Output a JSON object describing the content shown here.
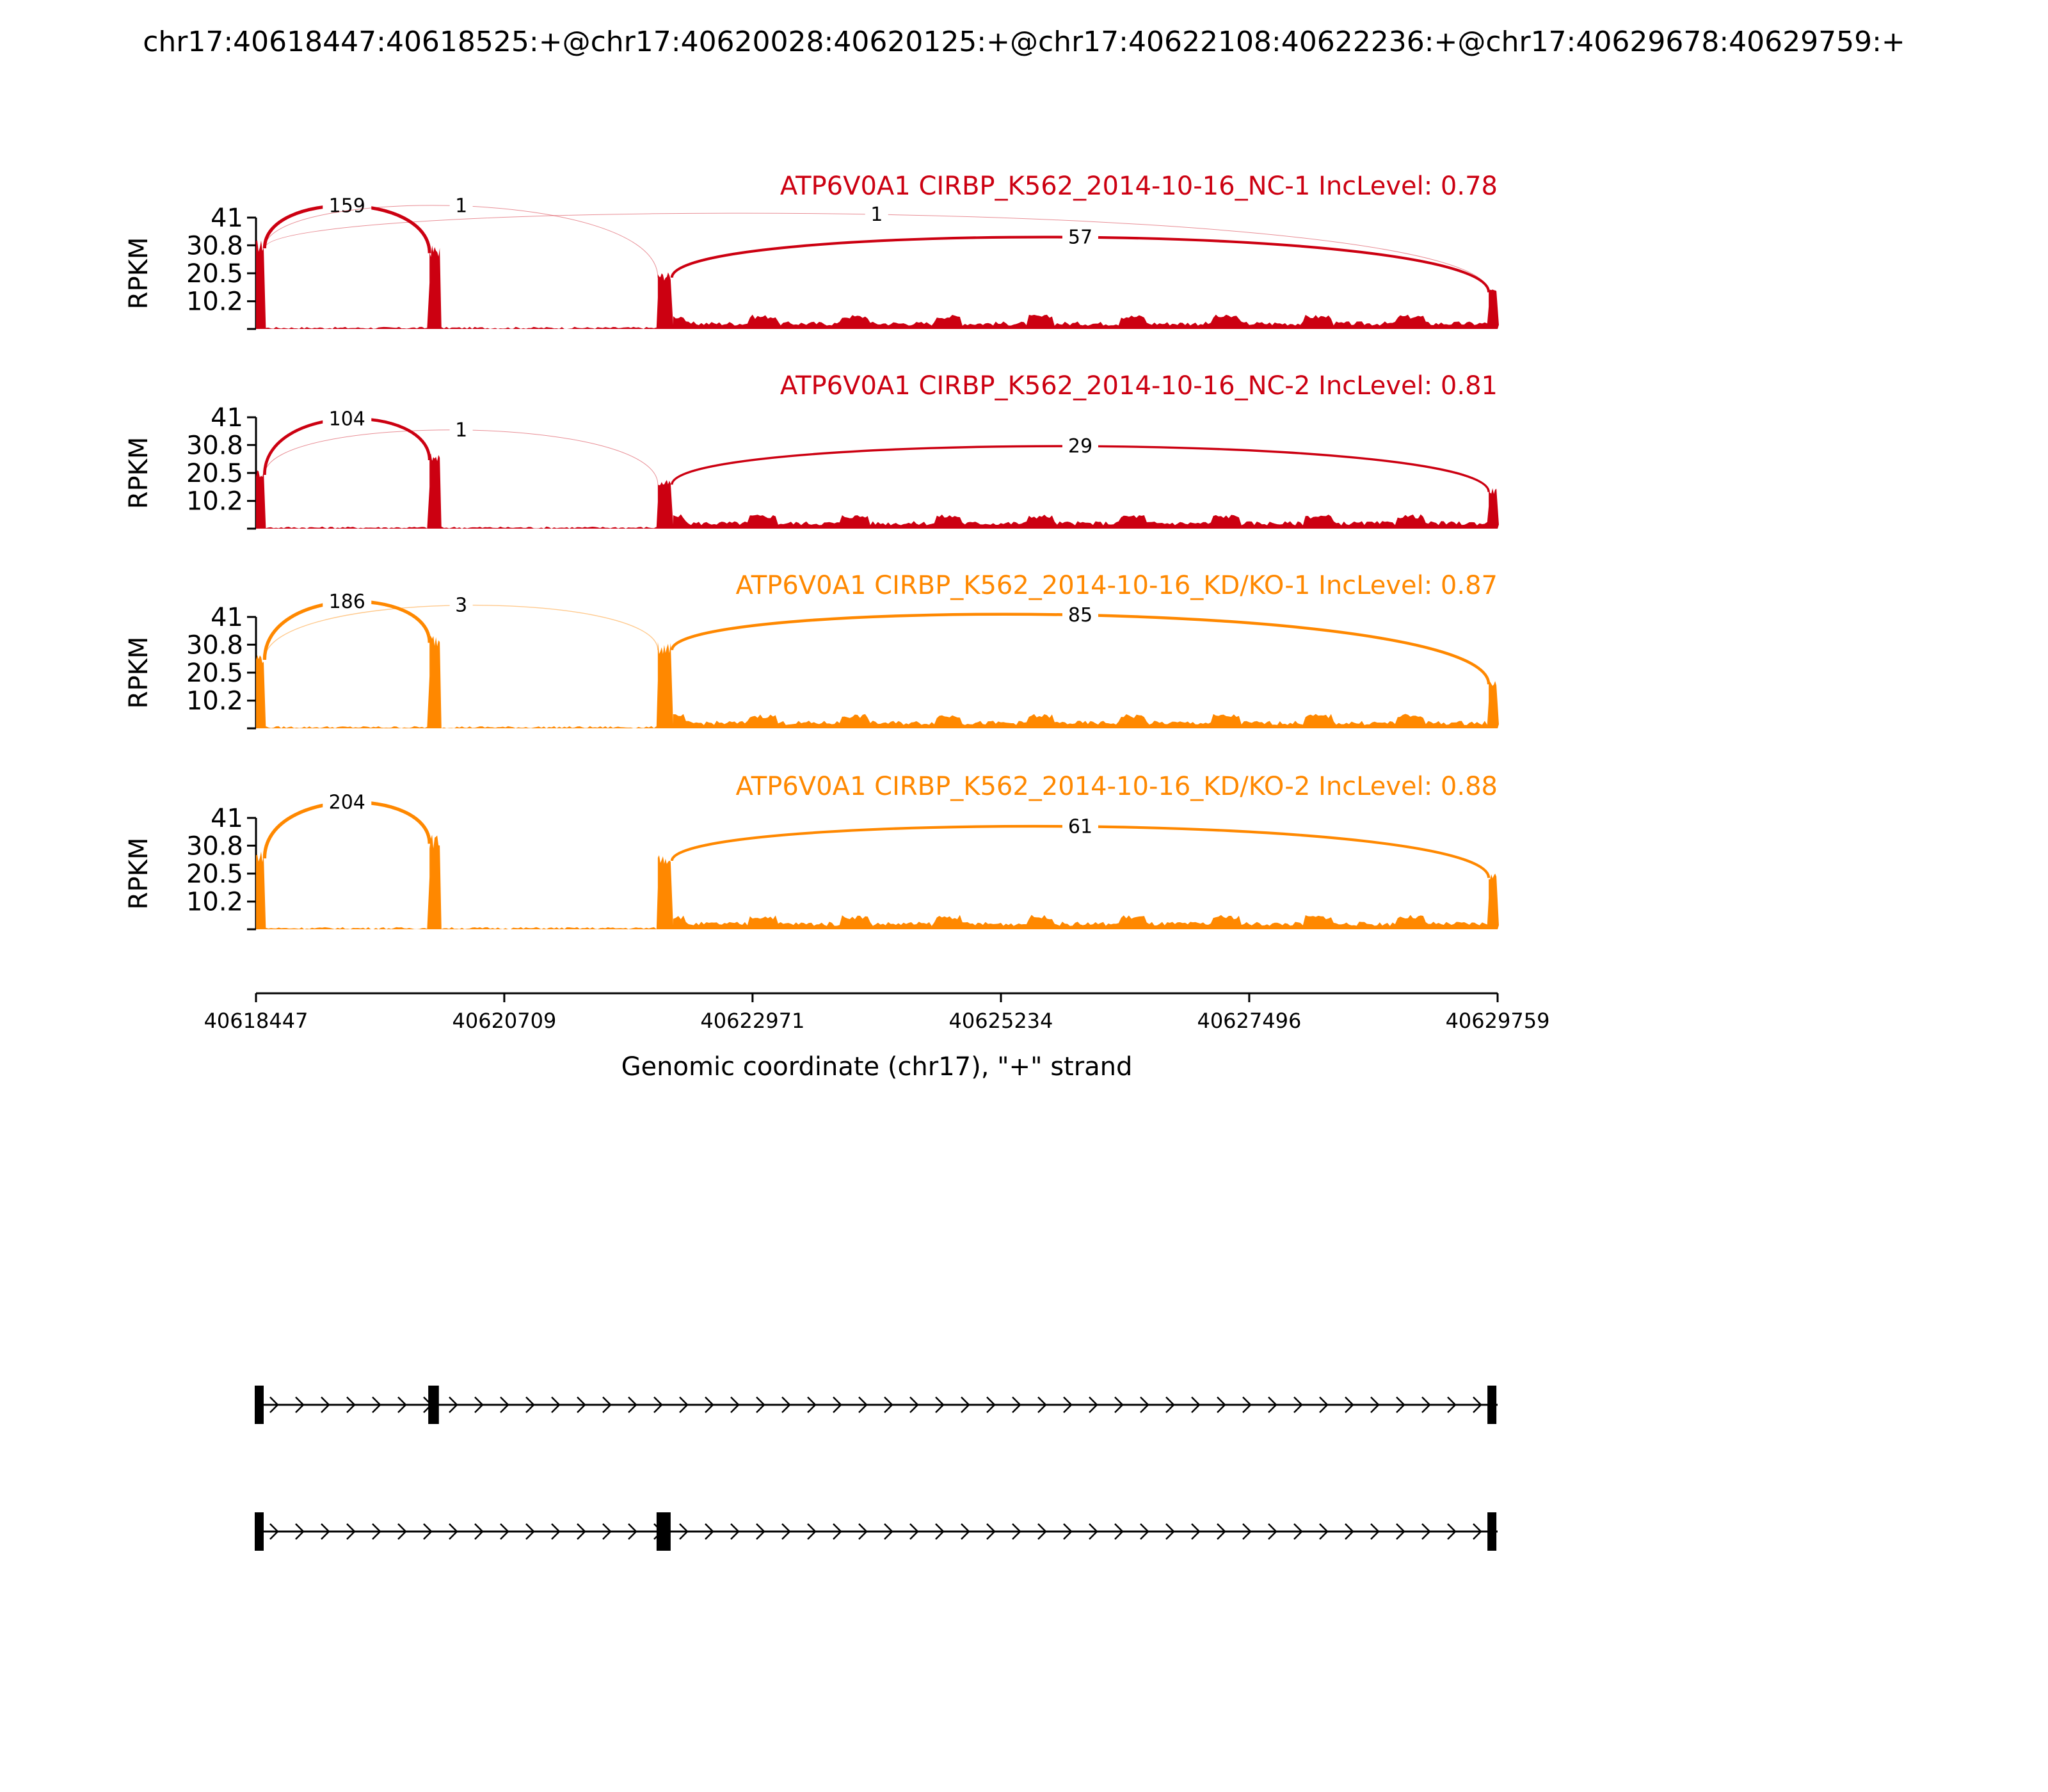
{
  "title": "chr17:40618447:40618525:+@chr17:40620028:40620125:+@chr17:40622108:40622236:+@chr17:40629678:40629759:+",
  "colors": {
    "nc": "#CC0011",
    "kd": "#FF8800",
    "axis": "#000000"
  },
  "chart_data": {
    "type": "area",
    "plot_kind": "sashimi",
    "xlabel": "Genomic coordinate (chr17), \"+\" strand",
    "xlim": [
      40618447,
      40629759
    ],
    "xticks": [
      "40618447",
      "40620709",
      "40622971",
      "40625234",
      "40627496",
      "40629759"
    ],
    "ylabel": "RPKM",
    "ylim": [
      0,
      41
    ],
    "yticks": [
      "41",
      "30.8",
      "20.5",
      "10.2"
    ],
    "exons": [
      {
        "start": 40618447,
        "end": 40618525
      },
      {
        "start": 40620028,
        "end": 40620125
      },
      {
        "start": 40622108,
        "end": 40622236
      },
      {
        "start": 40629678,
        "end": 40629759
      }
    ],
    "panels": [
      {
        "label": "ATP6V0A1 CIRBP_K562_2014-10-16_NC-1 IncLevel: 0.78",
        "group": "nc",
        "exon_peaks": [
          33,
          31,
          21,
          15
        ],
        "junctions": [
          {
            "from": 40618525,
            "to": 40620028,
            "count": "159",
            "side": "above"
          },
          {
            "from": 40618525,
            "to": 40622108,
            "count": "1",
            "side": "above"
          },
          {
            "from": 40618525,
            "to": 40629678,
            "count": "1",
            "side": "above"
          },
          {
            "from": 40622236,
            "to": 40629678,
            "count": "57",
            "side": "above"
          }
        ]
      },
      {
        "label": "ATP6V0A1 CIRBP_K562_2014-10-16_NC-2 IncLevel: 0.81",
        "group": "nc",
        "exon_peaks": [
          22,
          28,
          18,
          15
        ],
        "junctions": [
          {
            "from": 40618525,
            "to": 40620028,
            "count": "104",
            "side": "above"
          },
          {
            "from": 40618525,
            "to": 40622108,
            "count": "1",
            "side": "above"
          },
          {
            "from": 40622236,
            "to": 40629678,
            "count": "29",
            "side": "above"
          }
        ]
      },
      {
        "label": "ATP6V0A1 CIRBP_K562_2014-10-16_KD/KO-1 IncLevel: 0.87",
        "group": "kd",
        "exon_peaks": [
          28,
          35,
          32,
          18
        ],
        "junctions": [
          {
            "from": 40618525,
            "to": 40620028,
            "count": "186",
            "side": "above"
          },
          {
            "from": 40618525,
            "to": 40622108,
            "count": "3",
            "side": "above"
          },
          {
            "from": 40622236,
            "to": 40629678,
            "count": "85",
            "side": "above"
          }
        ]
      },
      {
        "label": "ATP6V0A1 CIRBP_K562_2014-10-16_KD/KO-2 IncLevel: 0.88",
        "group": "kd",
        "exon_peaks": [
          29,
          35,
          28,
          21
        ],
        "junctions": [
          {
            "from": 40618525,
            "to": 40620028,
            "count": "204",
            "side": "above"
          },
          {
            "from": 40622236,
            "to": 40629678,
            "count": "61",
            "side": "above"
          }
        ]
      }
    ],
    "isoforms": [
      {
        "exons": [
          [
            40618447,
            40618525
          ],
          [
            40620028,
            40620125
          ],
          [
            40629678,
            40629759
          ]
        ]
      },
      {
        "exons": [
          [
            40618447,
            40618525
          ],
          [
            40622108,
            40622236
          ],
          [
            40629678,
            40629759
          ]
        ]
      }
    ]
  }
}
